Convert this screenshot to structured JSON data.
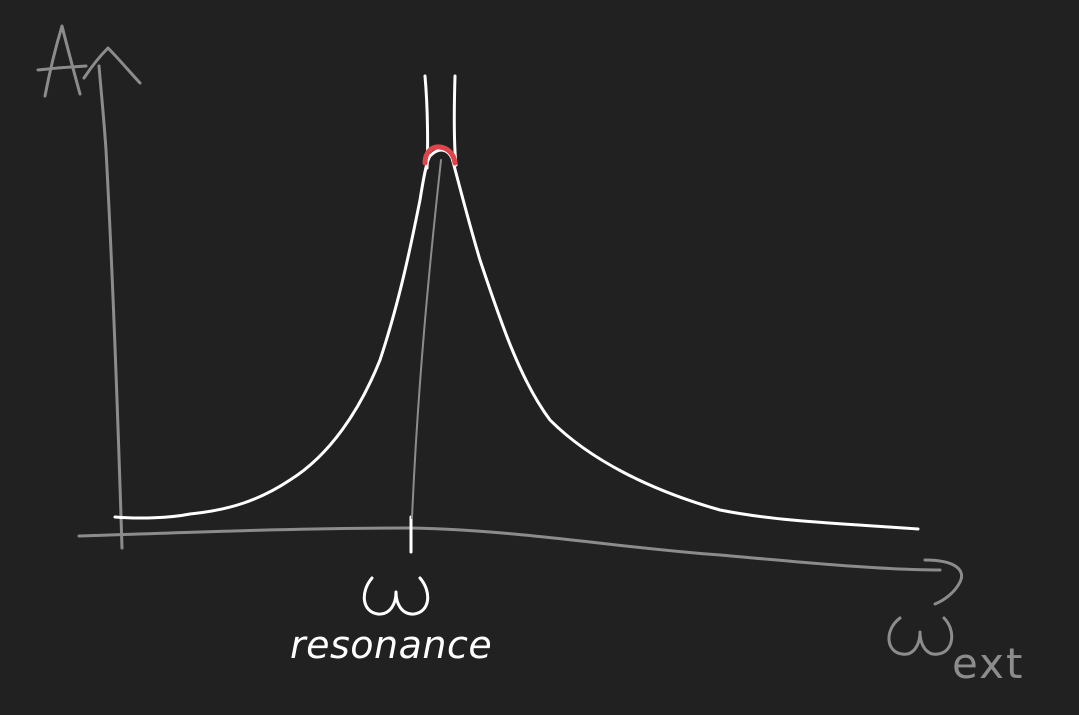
{
  "colors": {
    "background": "#212121",
    "axis": "#8c8c8c",
    "curve": "#ffffff",
    "peak_marker": "#e0444a"
  },
  "labels": {
    "y_axis": "A",
    "resonance_symbol": "ω",
    "resonance_word": "resonance",
    "x_axis_symbol": "ω",
    "x_axis_subscript": "ext"
  }
}
